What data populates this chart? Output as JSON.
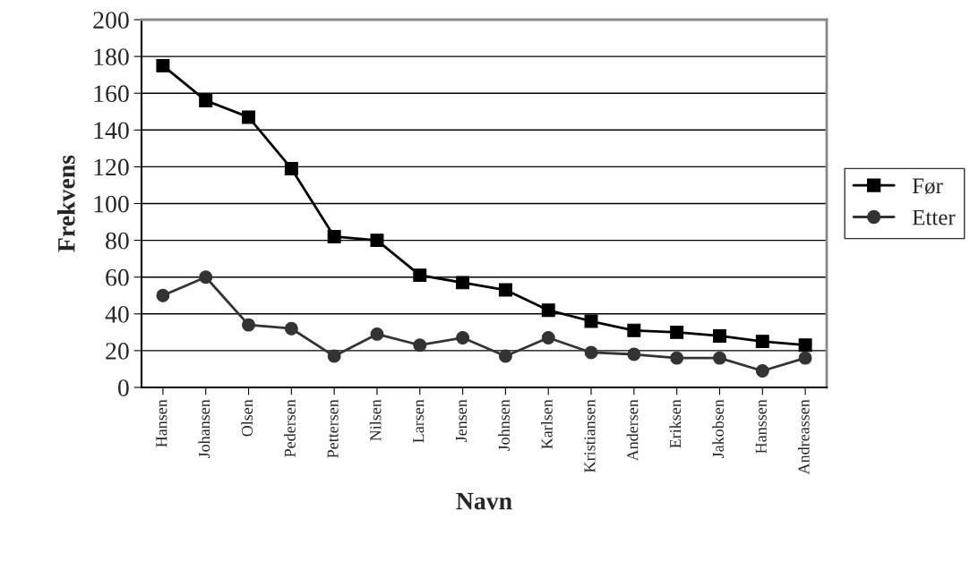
{
  "chart_data": {
    "type": "line",
    "xlabel": "Navn",
    "ylabel": "Frekvens",
    "categories": [
      "Hansen",
      "Johansen",
      "Olsen",
      "Pedersen",
      "Pettersen",
      "Nilsen",
      "Larsen",
      "Jensen",
      "Johnsen",
      "Karlsen",
      "Kristiansen",
      "Andersen",
      "Eriksen",
      "Jakobsen",
      "Hanssen",
      "Andreassen"
    ],
    "series": [
      {
        "name": "Før",
        "color": "#000000",
        "marker": "square",
        "values": [
          175,
          156,
          147,
          119,
          82,
          80,
          61,
          57,
          53,
          42,
          36,
          31,
          30,
          28,
          25,
          23
        ]
      },
      {
        "name": "Etter",
        "color": "#333333",
        "marker": "circle",
        "values": [
          50,
          60,
          34,
          32,
          17,
          29,
          23,
          27,
          17,
          27,
          19,
          18,
          16,
          16,
          9,
          16
        ]
      }
    ],
    "ylim": [
      0,
      200
    ],
    "yticks": [
      0,
      20,
      40,
      60,
      80,
      100,
      120,
      140,
      160,
      180,
      200
    ],
    "grid": "y",
    "legend": "right"
  }
}
